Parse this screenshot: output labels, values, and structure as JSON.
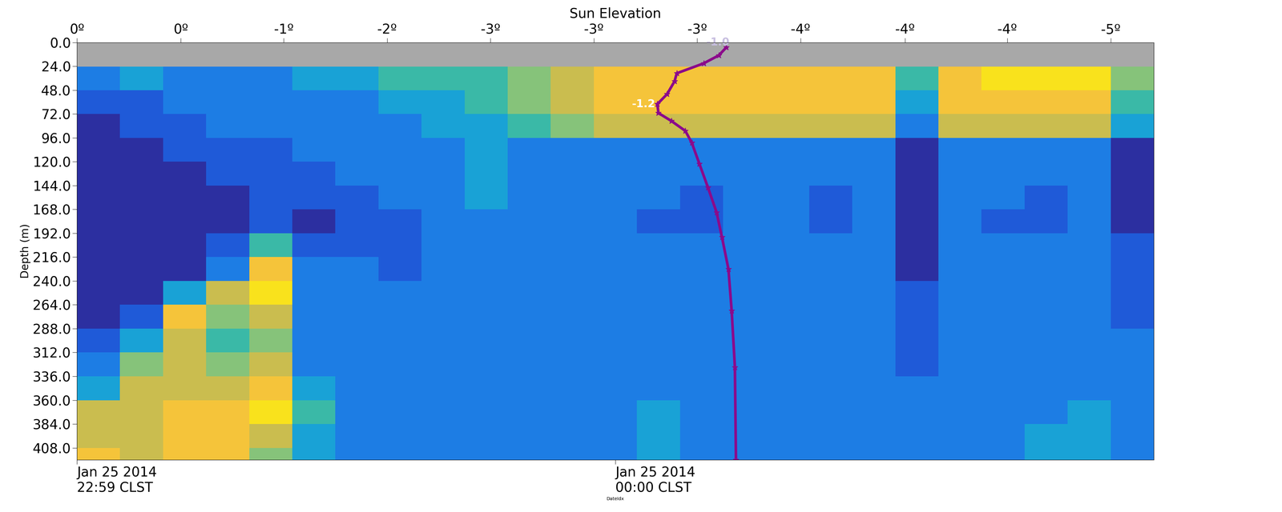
{
  "chart_data": {
    "type": "heatmap",
    "top_axis_label": "Sun Elevation",
    "xlabel": "DateIdx",
    "ylabel": "Depth (m)",
    "xlim": [
      0,
      100
    ],
    "ylim": [
      420,
      0
    ],
    "xticks": [
      {
        "value": 0,
        "label": "Jan 25 2014\n22:59 CLST"
      },
      {
        "value": 50,
        "label": "Jan 25 2014\n00:00 CLST"
      }
    ],
    "top_ticks": [
      {
        "value": 0,
        "label": "0º"
      },
      {
        "value": 9.65,
        "label": "0º"
      },
      {
        "value": 19.2,
        "label": "-1º"
      },
      {
        "value": 28.8,
        "label": "-2º"
      },
      {
        "value": 38.4,
        "label": "-3º"
      },
      {
        "value": 48.0,
        "label": "-3º"
      },
      {
        "value": 57.6,
        "label": "-3º"
      },
      {
        "value": 67.2,
        "label": "-4º"
      },
      {
        "value": 76.9,
        "label": "-4º"
      },
      {
        "value": 86.4,
        "label": "-4º"
      },
      {
        "value": 96.0,
        "label": "-5º"
      }
    ],
    "yticks": [
      {
        "value": 0,
        "label": "0.0"
      },
      {
        "value": 24,
        "label": "24.0"
      },
      {
        "value": 48,
        "label": "48.0"
      },
      {
        "value": 72,
        "label": "72.0"
      },
      {
        "value": 96,
        "label": "96.0"
      },
      {
        "value": 120,
        "label": "120.0"
      },
      {
        "value": 144,
        "label": "144.0"
      },
      {
        "value": 168,
        "label": "168.0"
      },
      {
        "value": 192,
        "label": "192.0"
      },
      {
        "value": 216,
        "label": "216.0"
      },
      {
        "value": 240,
        "label": "240.0"
      },
      {
        "value": 264,
        "label": "264.0"
      },
      {
        "value": 288,
        "label": "288.0"
      },
      {
        "value": 312,
        "label": "312.0"
      },
      {
        "value": 336,
        "label": "336.0"
      },
      {
        "value": 360,
        "label": "360.0"
      },
      {
        "value": 384,
        "label": "384.0"
      },
      {
        "value": 408,
        "label": "408.0"
      }
    ],
    "no_data_depth": [
      0,
      24
    ],
    "x_edges": [
      0,
      4,
      8,
      12,
      16,
      20,
      24,
      28,
      32,
      36,
      40,
      44,
      48,
      52,
      56,
      60,
      64,
      68,
      72,
      76,
      80,
      84,
      88,
      92,
      96,
      100
    ],
    "y_edges": [
      24,
      48,
      72,
      96,
      120,
      144,
      168,
      192,
      216,
      240,
      264,
      288,
      312,
      336,
      360,
      384,
      408,
      420
    ],
    "color_range": [
      0,
      10
    ],
    "cells": [
      [
        3,
        4,
        3,
        3,
        3,
        4,
        4,
        5,
        5,
        5,
        6,
        7,
        8,
        8,
        8,
        8,
        8,
        8,
        8,
        5,
        8,
        9,
        9,
        9,
        6
      ],
      [
        2,
        2,
        3,
        3,
        3,
        3,
        3,
        4,
        4,
        5,
        6,
        7,
        8,
        8,
        8,
        8,
        8,
        8,
        8,
        4,
        8,
        8,
        8,
        8,
        5
      ],
      [
        1,
        2,
        2,
        3,
        3,
        3,
        3,
        3,
        4,
        4,
        5,
        6,
        7,
        7,
        7,
        7,
        7,
        7,
        7,
        3,
        7,
        7,
        7,
        7,
        4
      ],
      [
        1,
        1,
        2,
        2,
        2,
        3,
        3,
        3,
        3,
        4,
        3,
        3,
        3,
        3,
        3,
        3,
        3,
        3,
        3,
        1,
        3,
        3,
        3,
        3,
        1
      ],
      [
        1,
        1,
        1,
        2,
        2,
        2,
        3,
        3,
        3,
        4,
        3,
        3,
        3,
        3,
        3,
        3,
        3,
        3,
        3,
        1,
        3,
        3,
        3,
        3,
        1
      ],
      [
        1,
        1,
        1,
        1,
        2,
        2,
        2,
        3,
        3,
        4,
        3,
        3,
        3,
        3,
        2,
        3,
        3,
        2,
        3,
        1,
        3,
        3,
        2,
        3,
        1
      ],
      [
        1,
        1,
        1,
        1,
        2,
        1,
        2,
        2,
        3,
        3,
        3,
        3,
        3,
        2,
        2,
        3,
        3,
        2,
        3,
        1,
        3,
        2,
        2,
        3,
        1
      ],
      [
        1,
        1,
        1,
        2,
        5,
        2,
        2,
        2,
        3,
        3,
        3,
        3,
        3,
        3,
        3,
        3,
        3,
        3,
        3,
        1,
        3,
        3,
        3,
        3,
        2
      ],
      [
        1,
        1,
        1,
        3,
        8,
        3,
        3,
        2,
        3,
        3,
        3,
        3,
        3,
        3,
        3,
        3,
        3,
        3,
        3,
        1,
        3,
        3,
        3,
        3,
        2
      ],
      [
        1,
        1,
        4,
        7,
        9,
        3,
        3,
        3,
        3,
        3,
        3,
        3,
        3,
        3,
        3,
        3,
        3,
        3,
        3,
        2,
        3,
        3,
        3,
        3,
        2
      ],
      [
        1,
        2,
        8,
        6,
        7,
        3,
        3,
        3,
        3,
        3,
        3,
        3,
        3,
        3,
        3,
        3,
        3,
        3,
        3,
        2,
        3,
        3,
        3,
        3,
        2
      ],
      [
        2,
        4,
        7,
        5,
        6,
        3,
        3,
        3,
        3,
        3,
        3,
        3,
        3,
        3,
        3,
        3,
        3,
        3,
        3,
        2,
        3,
        3,
        3,
        3,
        3
      ],
      [
        3,
        6,
        7,
        6,
        7,
        3,
        3,
        3,
        3,
        3,
        3,
        3,
        3,
        3,
        3,
        3,
        3,
        3,
        3,
        2,
        3,
        3,
        3,
        3,
        3
      ],
      [
        4,
        7,
        7,
        7,
        8,
        4,
        3,
        3,
        3,
        3,
        3,
        3,
        3,
        3,
        3,
        3,
        3,
        3,
        3,
        3,
        3,
        3,
        3,
        3,
        3
      ],
      [
        7,
        7,
        8,
        8,
        9,
        5,
        3,
        3,
        3,
        3,
        3,
        3,
        3,
        4,
        3,
        3,
        3,
        3,
        3,
        3,
        3,
        3,
        3,
        4,
        3
      ],
      [
        7,
        7,
        8,
        8,
        7,
        4,
        3,
        3,
        3,
        3,
        3,
        3,
        3,
        4,
        3,
        3,
        3,
        3,
        3,
        3,
        3,
        3,
        4,
        4,
        3
      ],
      [
        8,
        7,
        8,
        8,
        6,
        4,
        3,
        3,
        3,
        3,
        3,
        3,
        3,
        4,
        3,
        3,
        3,
        3,
        3,
        3,
        3,
        3,
        4,
        4,
        3
      ]
    ],
    "series": [
      {
        "type": "line",
        "color": "#8b0a8b",
        "marker": "*",
        "x": [
          60.3,
          59.6,
          58.2,
          55.7,
          55.5,
          54.8,
          53.9,
          54.0,
          55.2,
          56.5,
          57.1,
          57.8,
          58.6,
          59.4,
          59.9,
          60.5,
          60.8,
          61.1,
          61.2
        ],
        "values": [
          5,
          13,
          21,
          31,
          39,
          52,
          62,
          71,
          79,
          89,
          101,
          122,
          146,
          171,
          196,
          228,
          270,
          327,
          420
        ]
      }
    ],
    "annotations": [
      {
        "text": "-1.0",
        "x": 59.5,
        "y": 0,
        "color": "#c8bfe0"
      },
      {
        "text": "-1.2",
        "x": 52.6,
        "y": 62,
        "color": "#ffffff"
      }
    ]
  }
}
